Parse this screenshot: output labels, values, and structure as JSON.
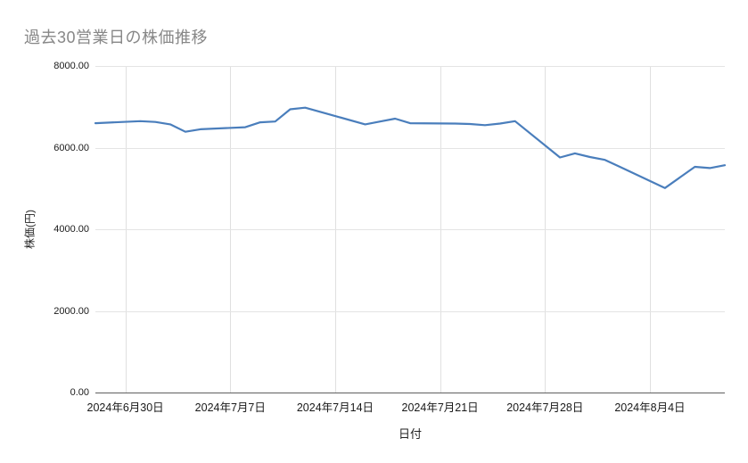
{
  "chart_data": {
    "type": "line",
    "title": "過去30営業日の株価推移",
    "xlabel": "日付",
    "ylabel": "株価(円)",
    "ylim": [
      0,
      8000
    ],
    "x_range": [
      "2024-06-28",
      "2024-08-09"
    ],
    "grid": true,
    "legend": "none",
    "line_color": "#4a7ebc",
    "y_ticks": [
      {
        "value": 8000,
        "label": "8000.00"
      },
      {
        "value": 6000,
        "label": "6000.00"
      },
      {
        "value": 4000,
        "label": "4000.00"
      },
      {
        "value": 2000,
        "label": "2000.00"
      },
      {
        "value": 0,
        "label": "0.00"
      }
    ],
    "x_ticks": [
      {
        "date": "2024-06-30",
        "label": "2024年6月30日"
      },
      {
        "date": "2024-07-07",
        "label": "2024年7月7日"
      },
      {
        "date": "2024-07-14",
        "label": "2024年7月14日"
      },
      {
        "date": "2024-07-21",
        "label": "2024年7月21日"
      },
      {
        "date": "2024-07-28",
        "label": "2024年7月28日"
      },
      {
        "date": "2024-08-04",
        "label": "2024年8月4日"
      }
    ],
    "points": [
      {
        "date": "2024-06-28",
        "value": 6600
      },
      {
        "date": "2024-07-01",
        "value": 6650
      },
      {
        "date": "2024-07-02",
        "value": 6630
      },
      {
        "date": "2024-07-03",
        "value": 6570
      },
      {
        "date": "2024-07-04",
        "value": 6390
      },
      {
        "date": "2024-07-05",
        "value": 6450
      },
      {
        "date": "2024-07-08",
        "value": 6500
      },
      {
        "date": "2024-07-09",
        "value": 6620
      },
      {
        "date": "2024-07-10",
        "value": 6640
      },
      {
        "date": "2024-07-11",
        "value": 6940
      },
      {
        "date": "2024-07-12",
        "value": 6980
      },
      {
        "date": "2024-07-16",
        "value": 6570
      },
      {
        "date": "2024-07-17",
        "value": 6640
      },
      {
        "date": "2024-07-18",
        "value": 6710
      },
      {
        "date": "2024-07-19",
        "value": 6600
      },
      {
        "date": "2024-07-22",
        "value": 6590
      },
      {
        "date": "2024-07-23",
        "value": 6580
      },
      {
        "date": "2024-07-24",
        "value": 6550
      },
      {
        "date": "2024-07-25",
        "value": 6590
      },
      {
        "date": "2024-07-26",
        "value": 6650
      },
      {
        "date": "2024-07-29",
        "value": 5760
      },
      {
        "date": "2024-07-30",
        "value": 5860
      },
      {
        "date": "2024-07-31",
        "value": 5770
      },
      {
        "date": "2024-08-01",
        "value": 5700
      },
      {
        "date": "2024-08-02",
        "value": 5530
      },
      {
        "date": "2024-08-05",
        "value": 5010
      },
      {
        "date": "2024-08-06",
        "value": 5270
      },
      {
        "date": "2024-08-07",
        "value": 5530
      },
      {
        "date": "2024-08-08",
        "value": 5500
      },
      {
        "date": "2024-08-09",
        "value": 5570
      }
    ]
  }
}
